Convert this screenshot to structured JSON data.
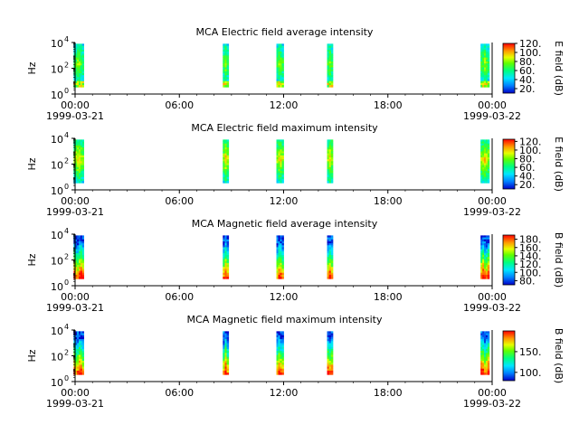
{
  "chart_data": [
    {
      "type": "heatmap",
      "title": "MCA  Electric field average intensity",
      "ylabel": "Hz",
      "yscale": "log",
      "ylim": [
        1,
        10000
      ],
      "y_ticks": [
        "10",
        "10",
        "10"
      ],
      "y_tick_exponents": [
        "0",
        "2",
        "4"
      ],
      "x_ticks": [
        "00:00",
        "06:00",
        "12:00",
        "18:00",
        "00:00"
      ],
      "x_date_labels": [
        "1999-03-21",
        "1999-03-22"
      ],
      "xlim": [
        "1999-03-21 00:00",
        "1999-03-22 00:00"
      ],
      "colorbar_label": "E field (dB)",
      "colorbar_range": [
        10,
        120
      ],
      "colorbar_ticks": [
        "20.",
        "40.",
        "60.",
        "80.",
        "100.",
        "120."
      ],
      "data_intervals": [
        {
          "start": "1999-03-20 23:55",
          "end": "1999-03-21 00:30"
        },
        {
          "start": "1999-03-21 08:30",
          "end": "1999-03-21 08:50"
        },
        {
          "start": "1999-03-21 11:35",
          "end": "1999-03-21 12:00"
        },
        {
          "start": "1999-03-21 14:30",
          "end": "1999-03-21 14:50"
        },
        {
          "start": "1999-03-21 23:20",
          "end": "1999-03-21 23:50"
        }
      ],
      "intensity_profile": "low-mid"
    },
    {
      "type": "heatmap",
      "title": "MCA  Electric field maximum intensity",
      "ylabel": "Hz",
      "yscale": "log",
      "ylim": [
        1,
        10000
      ],
      "y_ticks": [
        "10",
        "10",
        "10"
      ],
      "y_tick_exponents": [
        "0",
        "2",
        "4"
      ],
      "x_ticks": [
        "00:00",
        "06:00",
        "12:00",
        "18:00",
        "00:00"
      ],
      "x_date_labels": [
        "1999-03-21",
        "1999-03-22"
      ],
      "xlim": [
        "1999-03-21 00:00",
        "1999-03-22 00:00"
      ],
      "colorbar_label": "E field (dB)",
      "colorbar_range": [
        10,
        125
      ],
      "colorbar_ticks": [
        "20.",
        "40.",
        "60.",
        "80.",
        "100.",
        "120."
      ],
      "data_intervals": [
        {
          "start": "1999-03-20 23:55",
          "end": "1999-03-21 00:30"
        },
        {
          "start": "1999-03-21 08:30",
          "end": "1999-03-21 08:50"
        },
        {
          "start": "1999-03-21 11:35",
          "end": "1999-03-21 12:00"
        },
        {
          "start": "1999-03-21 14:30",
          "end": "1999-03-21 14:50"
        },
        {
          "start": "1999-03-21 23:20",
          "end": "1999-03-21 23:50"
        }
      ],
      "intensity_profile": "mid"
    },
    {
      "type": "heatmap",
      "title": "MCA  Magnetic field average intensity",
      "ylabel": "Hz",
      "yscale": "log",
      "ylim": [
        1,
        10000
      ],
      "y_ticks": [
        "10",
        "10",
        "10"
      ],
      "y_tick_exponents": [
        "0",
        "2",
        "4"
      ],
      "x_ticks": [
        "00:00",
        "06:00",
        "12:00",
        "18:00",
        "00:00"
      ],
      "x_date_labels": [
        "1999-03-21",
        "1999-03-22"
      ],
      "xlim": [
        "1999-03-21 00:00",
        "1999-03-22 00:00"
      ],
      "colorbar_label": "B field (dB)",
      "colorbar_range": [
        70,
        190
      ],
      "colorbar_ticks": [
        "80.",
        "100.",
        "120.",
        "140.",
        "160.",
        "180."
      ],
      "data_intervals": [
        {
          "start": "1999-03-20 23:55",
          "end": "1999-03-21 00:30"
        },
        {
          "start": "1999-03-21 08:30",
          "end": "1999-03-21 08:50"
        },
        {
          "start": "1999-03-21 11:35",
          "end": "1999-03-21 12:00"
        },
        {
          "start": "1999-03-21 14:30",
          "end": "1999-03-21 14:50"
        },
        {
          "start": "1999-03-21 23:20",
          "end": "1999-03-21 23:50"
        }
      ],
      "intensity_profile": "magnetic"
    },
    {
      "type": "heatmap",
      "title": "MCA  Magnetic field maximum intensity",
      "ylabel": "Hz",
      "yscale": "log",
      "ylim": [
        1,
        10000
      ],
      "y_ticks": [
        "10",
        "10",
        "10"
      ],
      "y_tick_exponents": [
        "0",
        "2",
        "4"
      ],
      "x_ticks": [
        "00:00",
        "06:00",
        "12:00",
        "18:00",
        "00:00"
      ],
      "x_date_labels": [
        "1999-03-21",
        "1999-03-22"
      ],
      "xlim": [
        "1999-03-21 00:00",
        "1999-03-22 00:00"
      ],
      "colorbar_label": "B field (dB)",
      "colorbar_range": [
        80,
        200
      ],
      "colorbar_ticks": [
        "100.",
        "150."
      ],
      "data_intervals": [
        {
          "start": "1999-03-20 23:55",
          "end": "1999-03-21 00:30"
        },
        {
          "start": "1999-03-21 08:30",
          "end": "1999-03-21 08:50"
        },
        {
          "start": "1999-03-21 11:35",
          "end": "1999-03-21 12:00"
        },
        {
          "start": "1999-03-21 14:30",
          "end": "1999-03-21 14:50"
        },
        {
          "start": "1999-03-21 23:20",
          "end": "1999-03-21 23:50"
        }
      ],
      "intensity_profile": "magnetic"
    }
  ]
}
